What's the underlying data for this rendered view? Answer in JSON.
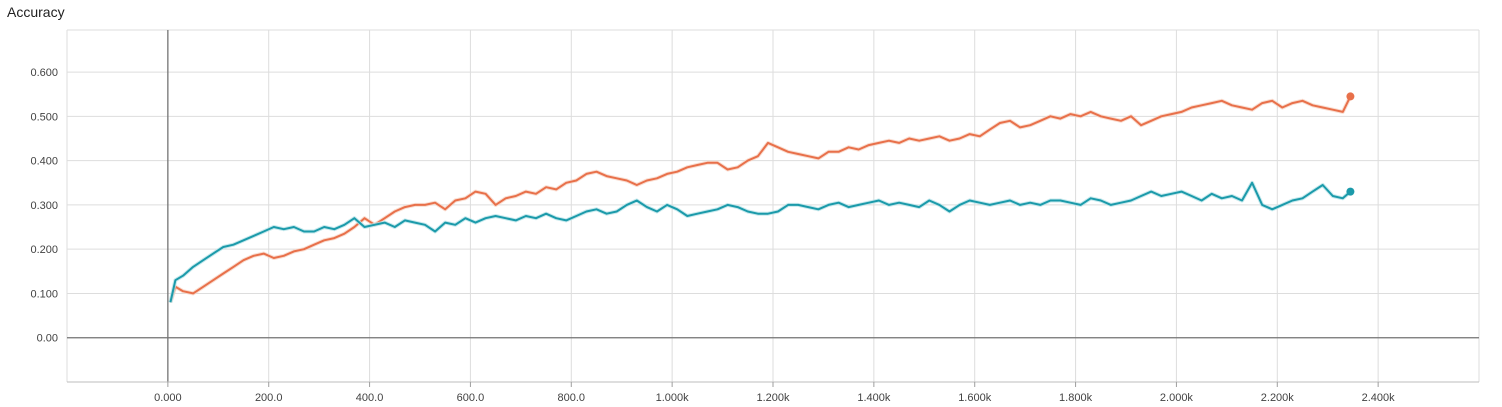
{
  "chart_data": {
    "type": "line",
    "title": "Accuracy",
    "xlabel": "",
    "ylabel": "",
    "xlim": [
      -200,
      2600
    ],
    "ylim": [
      -0.1,
      0.695
    ],
    "x_ticks": [
      0,
      200,
      400,
      600,
      800,
      1000,
      1200,
      1400,
      1600,
      1800,
      2000,
      2200,
      2400
    ],
    "x_tick_labels": [
      "0.000",
      "200.0",
      "400.0",
      "600.0",
      "800.0",
      "1.000k",
      "1.200k",
      "1.400k",
      "1.600k",
      "1.800k",
      "2.000k",
      "2.200k",
      "2.400k"
    ],
    "y_ticks": [
      0,
      0.1,
      0.2,
      0.3,
      0.4,
      0.5,
      0.6
    ],
    "y_tick_labels": [
      "0.00",
      "0.100",
      "0.200",
      "0.300",
      "0.400",
      "0.500",
      "0.600"
    ],
    "grid": true,
    "legend": "none",
    "series": [
      {
        "color": "#e8704a",
        "raw_color": "#f7d4c6",
        "x": [
          5,
          15,
          30,
          50,
          70,
          90,
          110,
          130,
          150,
          170,
          190,
          210,
          230,
          250,
          270,
          290,
          310,
          330,
          350,
          370,
          390,
          410,
          430,
          450,
          470,
          490,
          510,
          530,
          550,
          570,
          590,
          610,
          630,
          650,
          670,
          690,
          710,
          730,
          750,
          770,
          790,
          810,
          830,
          850,
          870,
          890,
          910,
          930,
          950,
          970,
          990,
          1010,
          1030,
          1050,
          1070,
          1090,
          1110,
          1130,
          1150,
          1170,
          1190,
          1210,
          1230,
          1250,
          1270,
          1290,
          1310,
          1330,
          1350,
          1370,
          1390,
          1410,
          1430,
          1450,
          1470,
          1490,
          1510,
          1530,
          1550,
          1570,
          1590,
          1610,
          1630,
          1650,
          1670,
          1690,
          1710,
          1730,
          1750,
          1770,
          1790,
          1810,
          1830,
          1850,
          1870,
          1890,
          1910,
          1930,
          1950,
          1970,
          1990,
          2010,
          2030,
          2050,
          2070,
          2090,
          2110,
          2130,
          2150,
          2170,
          2190,
          2210,
          2230,
          2250,
          2270,
          2290,
          2310,
          2330,
          2345
        ],
        "y": [
          0.08,
          0.115,
          0.105,
          0.1,
          0.115,
          0.13,
          0.145,
          0.16,
          0.175,
          0.185,
          0.19,
          0.18,
          0.185,
          0.195,
          0.2,
          0.21,
          0.22,
          0.225,
          0.235,
          0.25,
          0.27,
          0.255,
          0.27,
          0.285,
          0.295,
          0.3,
          0.3,
          0.305,
          0.29,
          0.31,
          0.315,
          0.33,
          0.325,
          0.3,
          0.315,
          0.32,
          0.33,
          0.325,
          0.34,
          0.335,
          0.35,
          0.355,
          0.37,
          0.375,
          0.365,
          0.36,
          0.355,
          0.345,
          0.355,
          0.36,
          0.37,
          0.375,
          0.385,
          0.39,
          0.395,
          0.395,
          0.38,
          0.385,
          0.4,
          0.41,
          0.44,
          0.43,
          0.42,
          0.415,
          0.41,
          0.405,
          0.42,
          0.42,
          0.43,
          0.425,
          0.435,
          0.44,
          0.445,
          0.44,
          0.45,
          0.445,
          0.45,
          0.455,
          0.445,
          0.45,
          0.46,
          0.455,
          0.47,
          0.485,
          0.49,
          0.475,
          0.48,
          0.49,
          0.5,
          0.495,
          0.505,
          0.5,
          0.51,
          0.5,
          0.495,
          0.49,
          0.5,
          0.48,
          0.49,
          0.5,
          0.505,
          0.51,
          0.52,
          0.525,
          0.53,
          0.535,
          0.525,
          0.52,
          0.515,
          0.53,
          0.535,
          0.52,
          0.53,
          0.535,
          0.525,
          0.52,
          0.515,
          0.51,
          0.545
        ]
      },
      {
        "color": "#1b9aaa",
        "raw_color": "#b9e3e8",
        "x": [
          5,
          15,
          30,
          50,
          70,
          90,
          110,
          130,
          150,
          170,
          190,
          210,
          230,
          250,
          270,
          290,
          310,
          330,
          350,
          370,
          390,
          410,
          430,
          450,
          470,
          490,
          510,
          530,
          550,
          570,
          590,
          610,
          630,
          650,
          670,
          690,
          710,
          730,
          750,
          770,
          790,
          810,
          830,
          850,
          870,
          890,
          910,
          930,
          950,
          970,
          990,
          1010,
          1030,
          1050,
          1070,
          1090,
          1110,
          1130,
          1150,
          1170,
          1190,
          1210,
          1230,
          1250,
          1270,
          1290,
          1310,
          1330,
          1350,
          1370,
          1390,
          1410,
          1430,
          1450,
          1470,
          1490,
          1510,
          1530,
          1550,
          1570,
          1590,
          1610,
          1630,
          1650,
          1670,
          1690,
          1710,
          1730,
          1750,
          1770,
          1790,
          1810,
          1830,
          1850,
          1870,
          1890,
          1910,
          1930,
          1950,
          1970,
          1990,
          2010,
          2030,
          2050,
          2070,
          2090,
          2110,
          2130,
          2150,
          2170,
          2190,
          2210,
          2230,
          2250,
          2270,
          2290,
          2310,
          2330,
          2345
        ],
        "y": [
          0.08,
          0.13,
          0.14,
          0.16,
          0.175,
          0.19,
          0.205,
          0.21,
          0.22,
          0.23,
          0.24,
          0.25,
          0.245,
          0.25,
          0.24,
          0.24,
          0.25,
          0.245,
          0.255,
          0.27,
          0.25,
          0.255,
          0.26,
          0.25,
          0.265,
          0.26,
          0.255,
          0.24,
          0.26,
          0.255,
          0.27,
          0.26,
          0.27,
          0.275,
          0.27,
          0.265,
          0.275,
          0.27,
          0.28,
          0.27,
          0.265,
          0.275,
          0.285,
          0.29,
          0.28,
          0.285,
          0.3,
          0.31,
          0.295,
          0.285,
          0.3,
          0.29,
          0.275,
          0.28,
          0.285,
          0.29,
          0.3,
          0.295,
          0.285,
          0.28,
          0.28,
          0.285,
          0.3,
          0.3,
          0.295,
          0.29,
          0.3,
          0.305,
          0.295,
          0.3,
          0.305,
          0.31,
          0.3,
          0.305,
          0.3,
          0.295,
          0.31,
          0.3,
          0.285,
          0.3,
          0.31,
          0.305,
          0.3,
          0.305,
          0.31,
          0.3,
          0.305,
          0.3,
          0.31,
          0.31,
          0.305,
          0.3,
          0.315,
          0.31,
          0.3,
          0.305,
          0.31,
          0.32,
          0.33,
          0.32,
          0.325,
          0.33,
          0.32,
          0.31,
          0.325,
          0.315,
          0.32,
          0.31,
          0.35,
          0.3,
          0.29,
          0.3,
          0.31,
          0.315,
          0.33,
          0.345,
          0.32,
          0.315,
          0.33
        ]
      }
    ]
  }
}
